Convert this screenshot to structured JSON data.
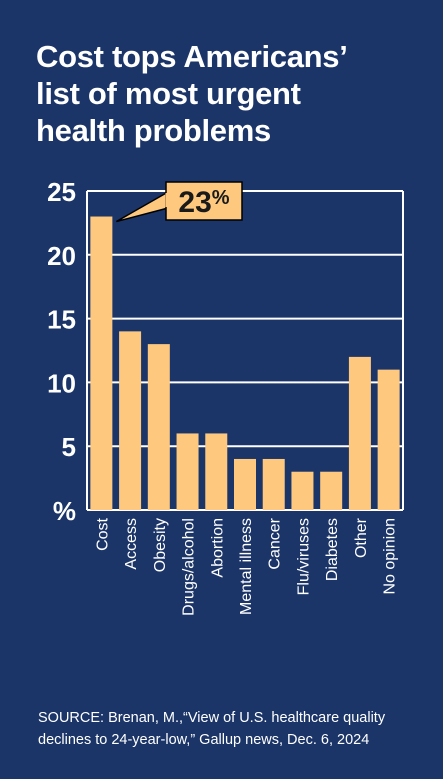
{
  "title_lines": [
    "Cost tops Americans’",
    "list of most urgent",
    "health problems"
  ],
  "source": "SOURCE: Brenan, M.,“View of U.S. healthcare quality declines to 24-year-low,” Gallup news, Dec. 6, 2024",
  "colors": {
    "background": "#1b3568",
    "bar": "#fec97e",
    "grid": "#ffffff",
    "text": "#ffffff",
    "callout_text": "#1a1a1a"
  },
  "chart_data": {
    "type": "bar",
    "categories": [
      "Cost",
      "Access",
      "Obesity",
      "Drugs/alcohol",
      "Abortion",
      "Mental illness",
      "Cancer",
      "Flu/viruses",
      "Diabetes",
      "Other",
      "No opinion"
    ],
    "values": [
      23,
      14,
      13,
      6,
      6,
      4,
      4,
      3,
      3,
      12,
      11
    ],
    "ylim": [
      0,
      25
    ],
    "yticks": [
      25,
      20,
      15,
      10,
      5
    ],
    "unit_label": "%",
    "grid": true,
    "callout": {
      "category": "Cost",
      "number": "23",
      "suffix": "%"
    }
  }
}
